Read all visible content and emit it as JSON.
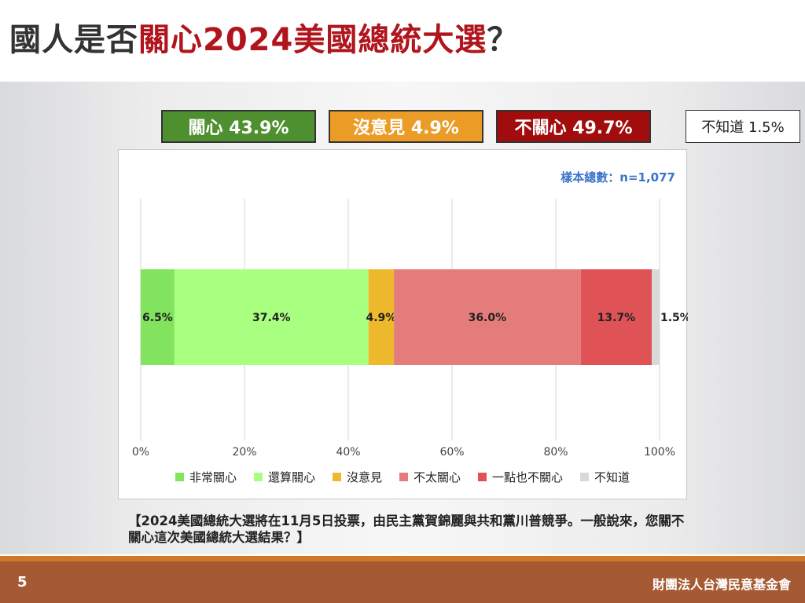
{
  "title": {
    "prefix": "國人是否",
    "highlight": "關心2024美國總統大選",
    "suffix": "？"
  },
  "summary": {
    "care": "關心 43.9%",
    "no_opinion": "沒意見 4.9%",
    "not_care": "不關心 49.7%",
    "dont_know": "不知道 1.5%"
  },
  "colors": {
    "title_highlight": "#b0141c",
    "summary_care": "#4e8f2f",
    "summary_no_opinion": "#eb9c26",
    "summary_not_care": "#a10d0d",
    "footer": "#a65a33",
    "footer_line": "#d0782a",
    "sample_text": "#3b73c9"
  },
  "sample_size": "樣本總數：n=1,077",
  "chart_data": {
    "type": "bar",
    "orientation": "horizontal",
    "stacked": true,
    "xlim": [
      0,
      100
    ],
    "x_ticks": [
      "0%",
      "20%",
      "40%",
      "60%",
      "80%",
      "100%"
    ],
    "grid": true,
    "legend_position": "bottom",
    "series": [
      {
        "name": "非常關心",
        "value": 6.5,
        "label": "6.5%",
        "color": "#82e35f"
      },
      {
        "name": "還算關心",
        "value": 37.4,
        "label": "37.4%",
        "color": "#a9ff7f"
      },
      {
        "name": "沒意見",
        "value": 4.9,
        "label": "4.9%",
        "color": "#efb92d"
      },
      {
        "name": "不太關心",
        "value": 36.0,
        "label": "36.0%",
        "color": "#e47c7c"
      },
      {
        "name": "一點也不關心",
        "value": 13.7,
        "label": "13.7%",
        "color": "#df5357"
      },
      {
        "name": "不知道",
        "value": 1.5,
        "label": "1.5%",
        "color": "#d9d9d9"
      }
    ]
  },
  "question": "【2024美國總統大選將在11月5日投票，由民主黨賀錦麗與共和黨川普競爭。一般說來，您關不關心這次美國總統大選結果？】",
  "footer": {
    "page_number": "5",
    "organization": "財團法人台灣民意基金會"
  }
}
